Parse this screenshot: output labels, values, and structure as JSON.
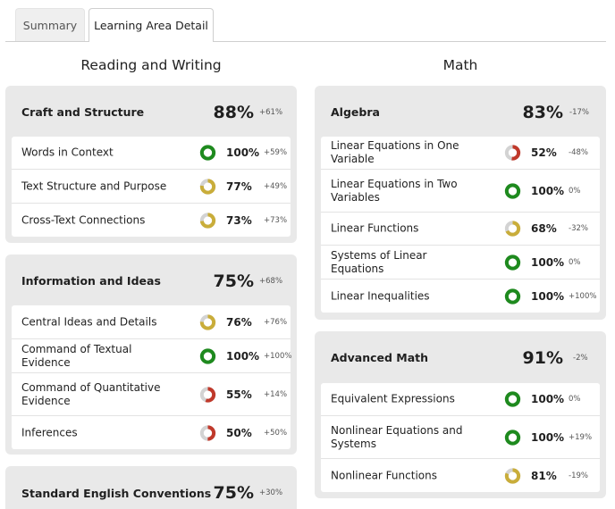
{
  "tabs": [
    {
      "label": "Summary",
      "active": false
    },
    {
      "label": "Learning Area Detail",
      "active": true
    }
  ],
  "colors": {
    "full": "#1e8a1e",
    "mid": "#c9ad3a",
    "low": "#c0392b",
    "track": "#d3d3d3"
  },
  "columns": [
    {
      "title": "Reading and Writing",
      "cards": [
        {
          "title": "Craft and Structure",
          "score": "88%",
          "delta": "+61%",
          "rows": [
            {
              "label": "Words in Context",
              "pct": "100%",
              "value": 100,
              "delta": "+59%",
              "tone": "full"
            },
            {
              "label": "Text Structure and Purpose",
              "pct": "77%",
              "value": 77,
              "delta": "+49%",
              "tone": "mid"
            },
            {
              "label": "Cross-Text Connections",
              "pct": "73%",
              "value": 73,
              "delta": "+73%",
              "tone": "mid"
            }
          ]
        },
        {
          "title": "Information and Ideas",
          "score": "75%",
          "delta": "+68%",
          "rows": [
            {
              "label": "Central Ideas and Details",
              "pct": "76%",
              "value": 76,
              "delta": "+76%",
              "tone": "mid"
            },
            {
              "label": "Command of Textual Evidence",
              "pct": "100%",
              "value": 100,
              "delta": "+100%",
              "tone": "full"
            },
            {
              "label": "Command of Quantitative Evidence",
              "pct": "55%",
              "value": 55,
              "delta": "+14%",
              "tone": "low"
            },
            {
              "label": "Inferences",
              "pct": "50%",
              "value": 50,
              "delta": "+50%",
              "tone": "low"
            }
          ]
        },
        {
          "title": "Standard English Conventions",
          "score": "75%",
          "delta": "+30%",
          "rows": []
        }
      ]
    },
    {
      "title": "Math",
      "cards": [
        {
          "title": "Algebra",
          "score": "83%",
          "delta": "-17%",
          "rows": [
            {
              "label": "Linear Equations in One Variable",
              "pct": "52%",
              "value": 52,
              "delta": "-48%",
              "tone": "low"
            },
            {
              "label": "Linear Equations in Two Variables",
              "pct": "100%",
              "value": 100,
              "delta": "0%",
              "tone": "full"
            },
            {
              "label": "Linear Functions",
              "pct": "68%",
              "value": 68,
              "delta": "-32%",
              "tone": "mid"
            },
            {
              "label": "Systems of Linear Equations",
              "pct": "100%",
              "value": 100,
              "delta": "0%",
              "tone": "full"
            },
            {
              "label": "Linear Inequalities",
              "pct": "100%",
              "value": 100,
              "delta": "+100%",
              "tone": "full"
            }
          ]
        },
        {
          "title": "Advanced Math",
          "score": "91%",
          "delta": "-2%",
          "rows": [
            {
              "label": "Equivalent Expressions",
              "pct": "100%",
              "value": 100,
              "delta": "0%",
              "tone": "full"
            },
            {
              "label": "Nonlinear Equations and Systems",
              "pct": "100%",
              "value": 100,
              "delta": "+19%",
              "tone": "full"
            },
            {
              "label": "Nonlinear Functions",
              "pct": "81%",
              "value": 81,
              "delta": "-19%",
              "tone": "mid"
            }
          ]
        }
      ]
    }
  ]
}
